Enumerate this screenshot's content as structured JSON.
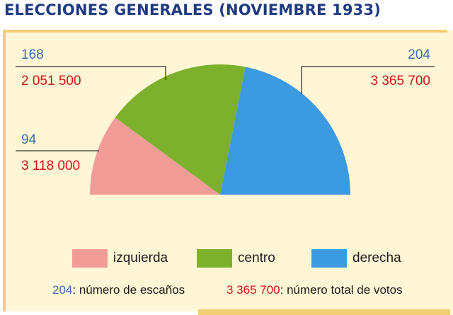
{
  "chart_data": {
    "type": "pie",
    "subtype": "semicircle",
    "title": "ELECCIONES GENERALES (NOVIEMBRE 1933)",
    "series": [
      {
        "name": "izquierda",
        "seats": 94,
        "seats_label": "94",
        "votes_label": "3 118 000",
        "color": "#f29c98"
      },
      {
        "name": "centro",
        "seats": 168,
        "seats_label": "168",
        "votes_label": "2 051 500",
        "color": "#7cb02d"
      },
      {
        "name": "derecha",
        "seats": 204,
        "seats_label": "204",
        "votes_label": "3 365 700",
        "color": "#3c9be0"
      }
    ],
    "legend_position": "bottom"
  },
  "legend": {
    "izquierda": "izquierda",
    "centro": "centro",
    "derecha": "derecha"
  },
  "note": {
    "seats_example": "204",
    "seats_text": ": número de escaños",
    "votes_example": "3 365 700",
    "votes_text": ": número total de votos"
  }
}
